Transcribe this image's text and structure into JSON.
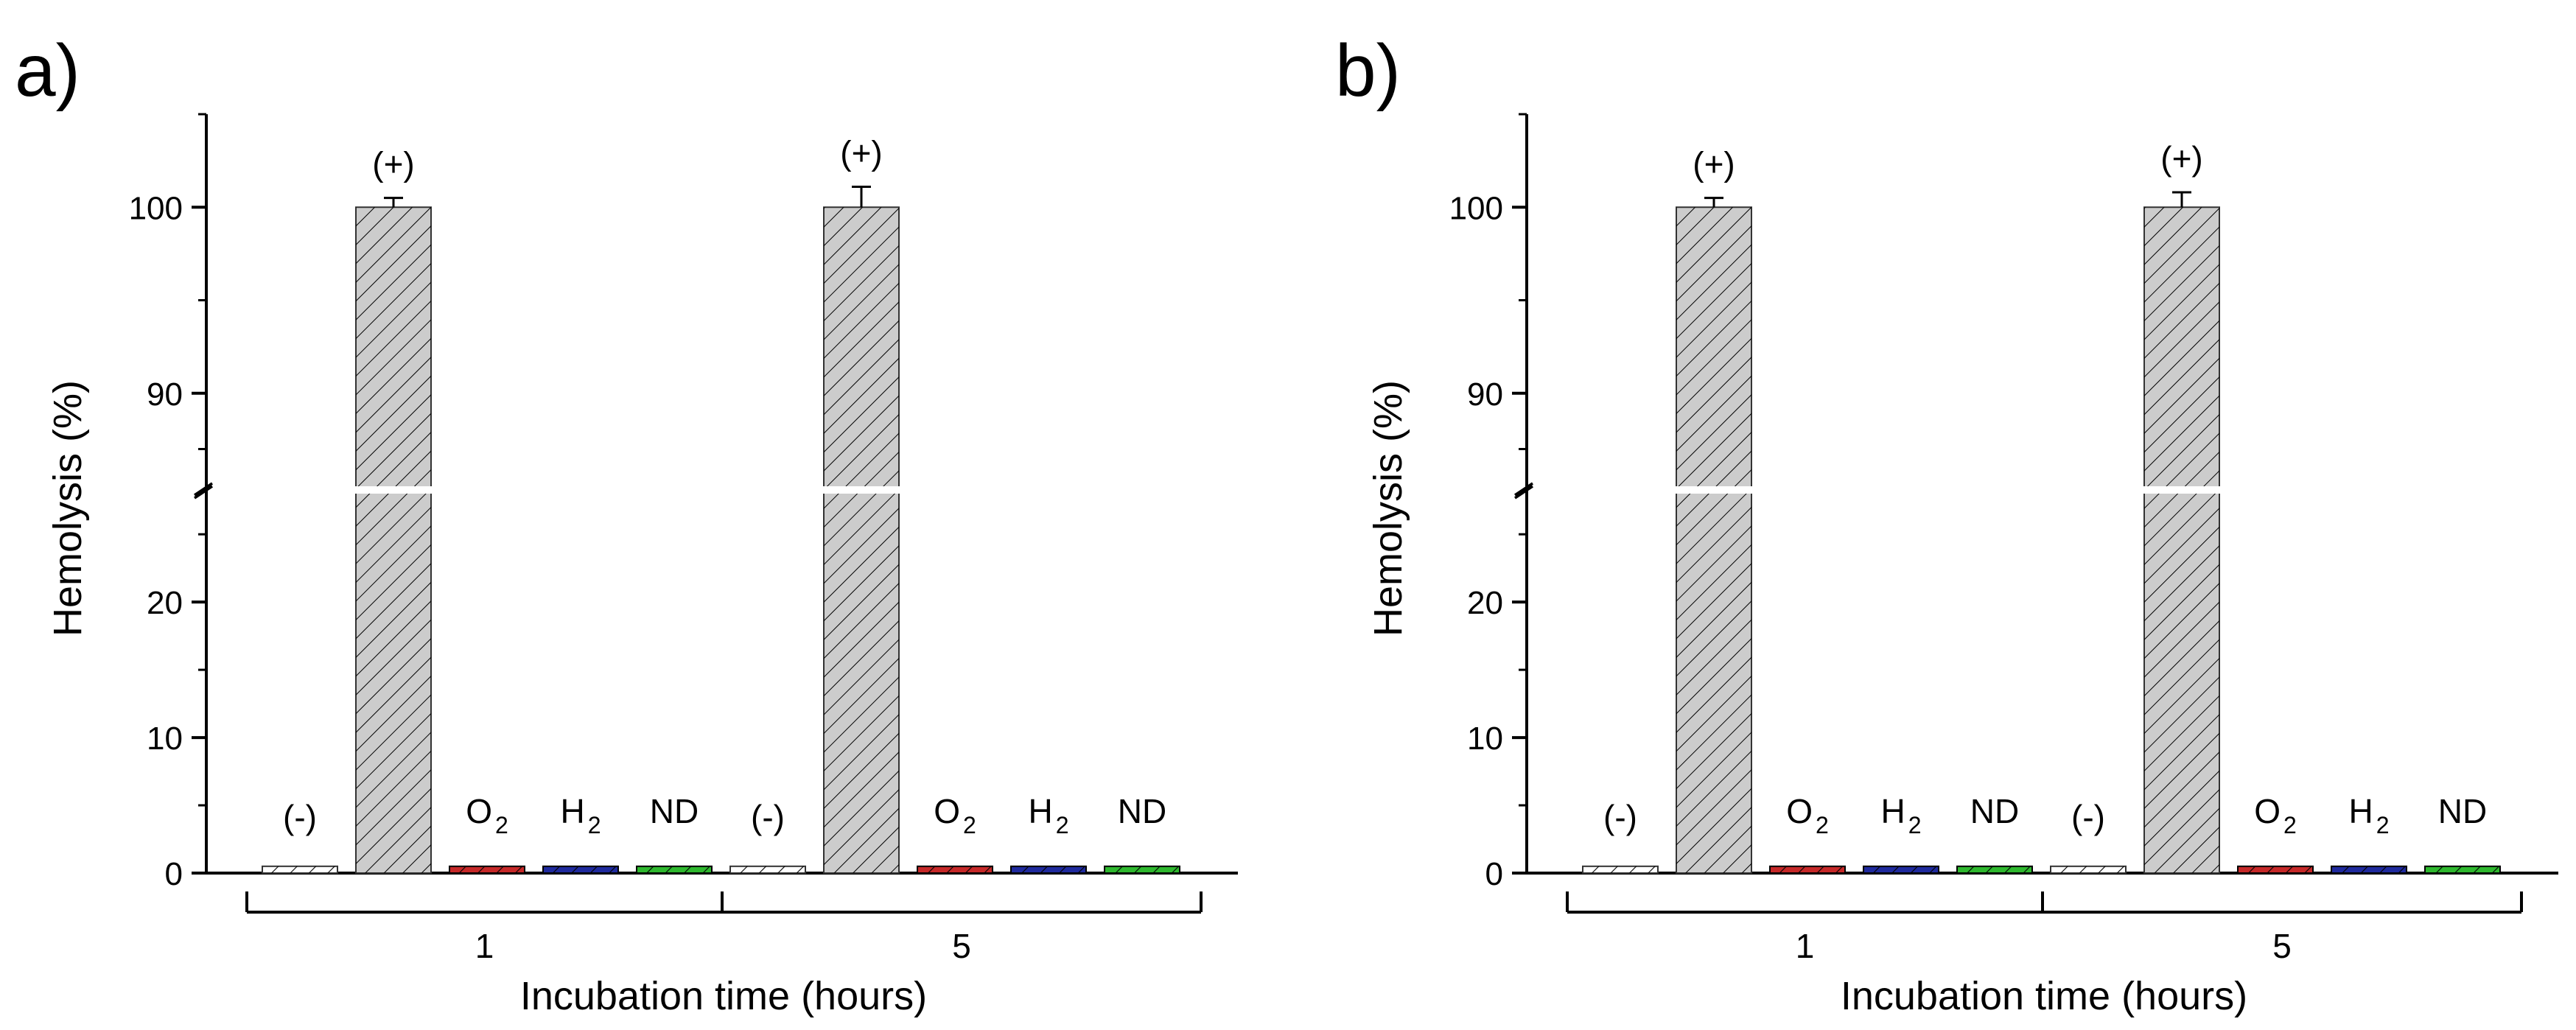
{
  "colors": {
    "negative": "#ffffff",
    "positive": "#cccccc",
    "o2": "#c62828",
    "h2": "#1f2a9e",
    "nd": "#2eb82e",
    "axis": "#000000"
  },
  "chart_data": [
    {
      "panel_label": "a)",
      "type": "bar",
      "ylabel": "Hemolysis (%)",
      "xlabel": "Incubation time (hours)",
      "y_axis_break": [
        28,
        85
      ],
      "ylim_lower": [
        0,
        28
      ],
      "ylim_upper": [
        85,
        105
      ],
      "yticks": [
        0,
        10,
        20,
        90,
        100
      ],
      "ytick_labels": [
        "0",
        "10",
        "20",
        "90",
        "100"
      ],
      "groups": [
        {
          "label": "1",
          "bars": [
            {
              "label": "(-)",
              "value": 0.5,
              "error": 0,
              "color_key": "negative"
            },
            {
              "label": "(+)",
              "value": 100,
              "error": 0.5,
              "color_key": "positive"
            },
            {
              "label": "O",
              "sub": "2",
              "value": 0.5,
              "error": 0,
              "color_key": "o2"
            },
            {
              "label": "H",
              "sub": "2",
              "value": 0.5,
              "error": 0,
              "color_key": "h2"
            },
            {
              "label": "ND",
              "value": 0.5,
              "error": 0,
              "color_key": "nd"
            }
          ]
        },
        {
          "label": "5",
          "bars": [
            {
              "label": "(-)",
              "value": 0.5,
              "error": 0,
              "color_key": "negative"
            },
            {
              "label": "(+)",
              "value": 100,
              "error": 1.1,
              "color_key": "positive"
            },
            {
              "label": "O",
              "sub": "2",
              "value": 0.5,
              "error": 0,
              "color_key": "o2"
            },
            {
              "label": "H",
              "sub": "2",
              "value": 0.5,
              "error": 0,
              "color_key": "h2"
            },
            {
              "label": "ND",
              "value": 0.5,
              "error": 0,
              "color_key": "nd"
            }
          ]
        }
      ]
    },
    {
      "panel_label": "b)",
      "type": "bar",
      "ylabel": "Hemolysis (%)",
      "xlabel": "Incubation time (hours)",
      "y_axis_break": [
        28,
        85
      ],
      "ylim_lower": [
        0,
        28
      ],
      "ylim_upper": [
        85,
        105
      ],
      "yticks": [
        0,
        10,
        20,
        90,
        100
      ],
      "ytick_labels": [
        "0",
        "10",
        "20",
        "90",
        "100"
      ],
      "groups": [
        {
          "label": "1",
          "bars": [
            {
              "label": "(-)",
              "value": 0.5,
              "error": 0,
              "color_key": "negative"
            },
            {
              "label": "(+)",
              "value": 100,
              "error": 0.5,
              "color_key": "positive"
            },
            {
              "label": "O",
              "sub": "2",
              "value": 0.5,
              "error": 0,
              "color_key": "o2"
            },
            {
              "label": "H",
              "sub": "2",
              "value": 0.5,
              "error": 0,
              "color_key": "h2"
            },
            {
              "label": "ND",
              "value": 0.5,
              "error": 0,
              "color_key": "nd"
            }
          ]
        },
        {
          "label": "5",
          "bars": [
            {
              "label": "(-)",
              "value": 0.5,
              "error": 0,
              "color_key": "negative"
            },
            {
              "label": "(+)",
              "value": 100,
              "error": 0.8,
              "color_key": "positive"
            },
            {
              "label": "O",
              "sub": "2",
              "value": 0.5,
              "error": 0,
              "color_key": "o2"
            },
            {
              "label": "H",
              "sub": "2",
              "value": 0.5,
              "error": 0,
              "color_key": "h2"
            },
            {
              "label": "ND",
              "value": 0.5,
              "error": 0,
              "color_key": "nd"
            }
          ]
        }
      ]
    }
  ]
}
